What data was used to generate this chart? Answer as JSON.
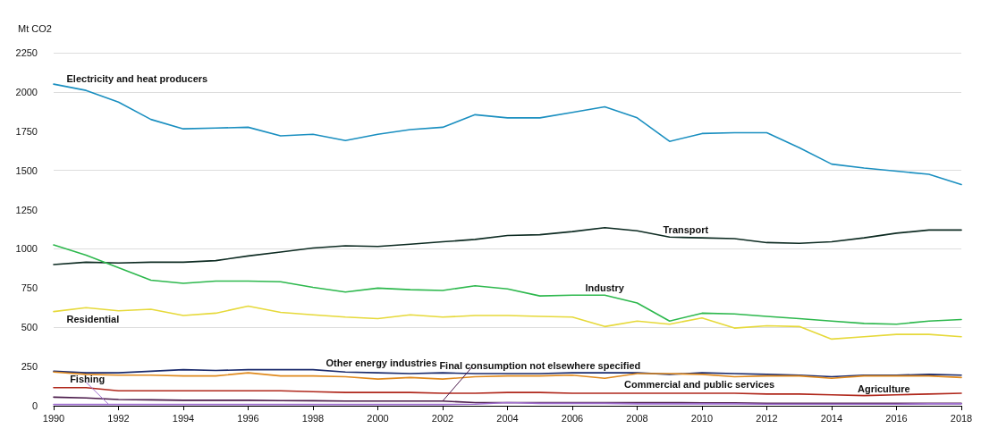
{
  "chart_data": {
    "type": "line",
    "ylabel": "Mt CO2",
    "x": [
      1990,
      1991,
      1992,
      1993,
      1994,
      1995,
      1996,
      1997,
      1998,
      1999,
      2000,
      2001,
      2002,
      2003,
      2004,
      2005,
      2006,
      2007,
      2008,
      2009,
      2010,
      2011,
      2012,
      2013,
      2014,
      2015,
      2016,
      2017,
      2018
    ],
    "xlim": [
      1990,
      2018
    ],
    "xticks": [
      1990,
      1992,
      1994,
      1996,
      1998,
      2000,
      2002,
      2004,
      2006,
      2008,
      2010,
      2012,
      2014,
      2016,
      2018
    ],
    "ylim": [
      0,
      2250
    ],
    "yticks": [
      0,
      250,
      500,
      750,
      1000,
      1250,
      1500,
      1750,
      2000,
      2250
    ],
    "grid": "y",
    "legend": false,
    "marker": "none",
    "line_style": "solid",
    "series": [
      {
        "name": "Electricity and heat producers",
        "color": "#1a8fc0",
        "values": [
          2050,
          2010,
          1935,
          1825,
          1765,
          1770,
          1775,
          1720,
          1730,
          1690,
          1730,
          1760,
          1775,
          1855,
          1835,
          1835,
          1870,
          1905,
          1835,
          1685,
          1735,
          1740,
          1740,
          1645,
          1540,
          1515,
          1495,
          1475,
          1410
        ]
      },
      {
        "name": "Transport",
        "color": "#0d2b22",
        "values": [
          900,
          915,
          910,
          915,
          915,
          925,
          955,
          980,
          1005,
          1020,
          1015,
          1030,
          1045,
          1060,
          1085,
          1090,
          1110,
          1135,
          1115,
          1075,
          1070,
          1065,
          1040,
          1035,
          1045,
          1070,
          1100,
          1120,
          1120
        ]
      },
      {
        "name": "Industry",
        "color": "#2db84d",
        "values": [
          1025,
          960,
          880,
          800,
          780,
          795,
          795,
          790,
          755,
          725,
          750,
          740,
          735,
          765,
          745,
          700,
          705,
          705,
          655,
          540,
          590,
          585,
          570,
          555,
          540,
          525,
          520,
          540,
          550
        ]
      },
      {
        "name": "Residential",
        "color": "#e6d93a",
        "values": [
          600,
          625,
          605,
          615,
          575,
          590,
          635,
          595,
          580,
          565,
          555,
          580,
          565,
          575,
          575,
          570,
          565,
          505,
          540,
          520,
          560,
          495,
          510,
          505,
          425,
          440,
          455,
          455,
          440
        ]
      },
      {
        "name": "Other energy industries",
        "color": "#1a2a6c",
        "values": [
          220,
          210,
          210,
          220,
          230,
          225,
          230,
          230,
          230,
          215,
          210,
          205,
          210,
          205,
          205,
          205,
          210,
          210,
          210,
          200,
          210,
          205,
          200,
          195,
          185,
          195,
          195,
          200,
          195
        ]
      },
      {
        "name": "Commercial and public services",
        "color": "#e08a1e",
        "values": [
          215,
          200,
          195,
          195,
          190,
          190,
          210,
          190,
          190,
          185,
          170,
          180,
          170,
          185,
          190,
          190,
          195,
          175,
          205,
          205,
          200,
          185,
          190,
          190,
          175,
          190,
          190,
          190,
          180
        ]
      },
      {
        "name": "Agriculture",
        "color": "#b0281c",
        "values": [
          115,
          115,
          95,
          95,
          95,
          95,
          95,
          95,
          90,
          85,
          85,
          85,
          80,
          80,
          85,
          85,
          80,
          80,
          80,
          80,
          80,
          80,
          75,
          75,
          70,
          65,
          70,
          75,
          80
        ]
      },
      {
        "name": "Final consumption not elsewhere specified",
        "color": "#4a1a4a",
        "values": [
          55,
          50,
          40,
          38,
          35,
          35,
          35,
          33,
          32,
          30,
          30,
          30,
          30,
          20,
          20,
          20,
          20,
          20,
          20,
          20,
          18,
          18,
          15,
          15,
          15,
          15,
          15,
          15,
          15
        ]
      },
      {
        "name": "Fishing",
        "color": "#a070d0",
        "values": [
          8,
          8,
          8,
          8,
          8,
          8,
          8,
          8,
          8,
          8,
          8,
          8,
          8,
          10,
          20,
          15,
          15,
          15,
          12,
          12,
          12,
          12,
          10,
          10,
          10,
          10,
          10,
          12,
          12
        ]
      }
    ]
  }
}
